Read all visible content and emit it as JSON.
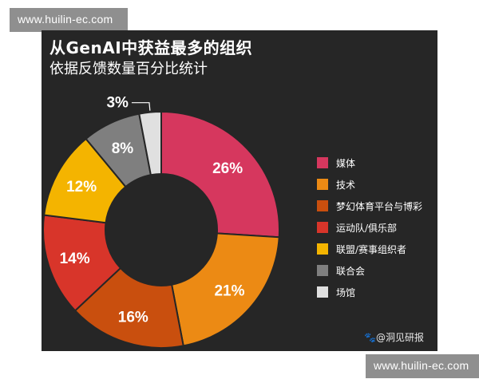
{
  "watermark_text": "www.huilin-ec.com",
  "credit": "🐾@洞见研报",
  "chart_data": {
    "type": "pie",
    "title": "从GenAI中获益最多的组织",
    "subtitle": "依据反馈数量百分比统计",
    "donut": true,
    "legend_position": "right",
    "categories": [
      "媒体",
      "技术",
      "梦幻体育平台与博彩",
      "运动队/俱乐部",
      "联盟/赛事组织者",
      "联合会",
      "场馆"
    ],
    "values": [
      26,
      21,
      16,
      14,
      12,
      8,
      3
    ],
    "labels": [
      "26%",
      "21%",
      "16%",
      "14%",
      "12%",
      "8%",
      "3%"
    ],
    "colors": [
      "#d6375e",
      "#ec8a14",
      "#c94f0e",
      "#d8352a",
      "#f4b400",
      "#7f7f7f",
      "#e0e0e0"
    ]
  }
}
